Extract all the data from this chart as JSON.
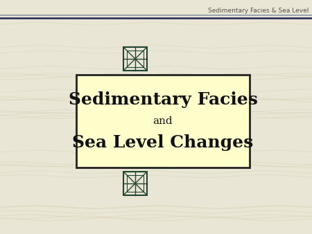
{
  "bg_color": "#eae6d5",
  "header_text": "Sedimentary Facies & Sea Level",
  "header_text_color": "#555550",
  "header_line_color1": "#8899aa",
  "header_line_color2": "#222255",
  "title_line1": "Sedimentary Facies",
  "title_line2": "and",
  "title_line3": "Sea Level Changes",
  "box_facecolor": "#ffffcc",
  "box_edgecolor": "#222222",
  "text_color": "#111111",
  "symbol_color": "#224433",
  "figsize": [
    4.5,
    3.38
  ],
  "dpi": 100
}
